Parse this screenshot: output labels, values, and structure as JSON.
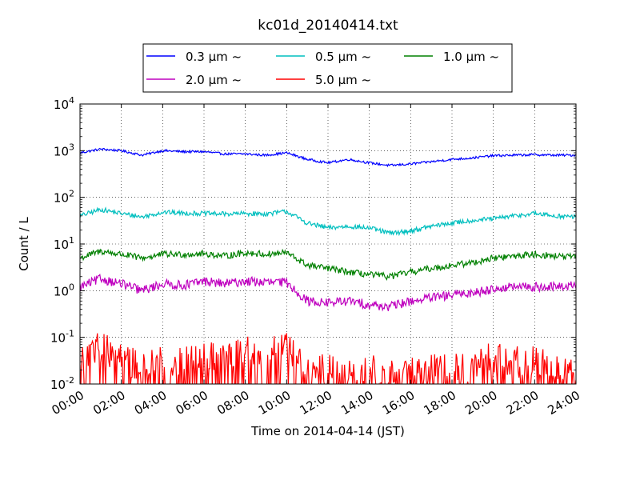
{
  "chart_data": {
    "type": "line",
    "title": "kc01d_20140414.txt",
    "xlabel": "Time on 2014-04-14 (JST)",
    "ylabel": "Count / L",
    "yscale": "log",
    "ylim": [
      0.01,
      10000
    ],
    "xlim": [
      "00:00",
      "24:00"
    ],
    "x_ticks": [
      "00:00",
      "02:00",
      "04:00",
      "06:00",
      "08:00",
      "10:00",
      "12:00",
      "14:00",
      "16:00",
      "18:00",
      "20:00",
      "22:00",
      "24:00"
    ],
    "y_ticks": [
      {
        "value": 0.01,
        "mant": "10",
        "exp": "-2"
      },
      {
        "value": 0.1,
        "mant": "10",
        "exp": "-1"
      },
      {
        "value": 1,
        "mant": "10",
        "exp": "0"
      },
      {
        "value": 10,
        "mant": "10",
        "exp": "1"
      },
      {
        "value": 100,
        "mant": "10",
        "exp": "2"
      },
      {
        "value": 1000,
        "mant": "10",
        "exp": "3"
      },
      {
        "value": 10000,
        "mant": "10",
        "exp": "4"
      }
    ],
    "grid": true,
    "legend_position": "top-center",
    "x": [
      "00:00",
      "01:00",
      "02:00",
      "03:00",
      "04:00",
      "05:00",
      "06:00",
      "07:00",
      "08:00",
      "09:00",
      "10:00",
      "11:00",
      "12:00",
      "13:00",
      "14:00",
      "15:00",
      "16:00",
      "17:00",
      "18:00",
      "19:00",
      "20:00",
      "21:00",
      "22:00",
      "23:00",
      "24:00"
    ],
    "series": [
      {
        "name": "0.3 μm ~",
        "color": "#0000ff",
        "values": [
          900,
          1080,
          1000,
          800,
          1000,
          950,
          950,
          850,
          850,
          800,
          900,
          650,
          550,
          650,
          550,
          480,
          520,
          580,
          650,
          700,
          780,
          800,
          820,
          800,
          800
        ]
      },
      {
        "name": "0.5 μm ~",
        "color": "#00bfbf",
        "values": [
          40,
          55,
          45,
          38,
          48,
          46,
          45,
          44,
          45,
          44,
          50,
          28,
          22,
          24,
          22,
          17,
          19,
          24,
          28,
          32,
          35,
          40,
          45,
          40,
          38
        ]
      },
      {
        "name": "1.0 μm ~",
        "color": "#008000",
        "values": [
          5,
          7,
          6,
          5,
          6,
          6,
          6.2,
          5.5,
          6.5,
          6,
          6.5,
          3.5,
          3,
          2.5,
          2.2,
          2,
          2.5,
          3,
          3.5,
          4,
          5,
          5.5,
          6,
          5.5,
          5.2
        ]
      },
      {
        "name": "2.0 μm ~",
        "color": "#bf00bf",
        "values": [
          1.2,
          1.8,
          1.4,
          1.0,
          1.4,
          1.3,
          1.6,
          1.4,
          1.6,
          1.5,
          1.5,
          0.6,
          0.55,
          0.6,
          0.5,
          0.45,
          0.6,
          0.7,
          0.8,
          0.9,
          1.1,
          1.2,
          1.2,
          1.2,
          1.3
        ]
      },
      {
        "name": "5.0 μm ~",
        "color": "#ff0000",
        "values": [
          0.04,
          0.06,
          0.04,
          0.02,
          0.03,
          0.03,
          0.04,
          0.05,
          0.05,
          0.05,
          0.06,
          0.02,
          0.02,
          0.015,
          0.02,
          0.015,
          0.02,
          0.02,
          0.02,
          0.02,
          0.04,
          0.03,
          0.03,
          0.02,
          0.02
        ]
      }
    ]
  }
}
